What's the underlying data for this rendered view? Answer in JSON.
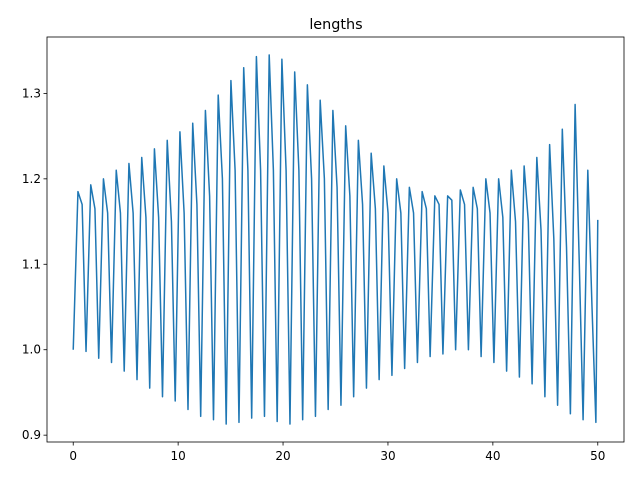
{
  "chart_data": {
    "type": "line",
    "title": "lengths",
    "x": [
      0,
      0.45,
      0.85,
      1.22,
      1.67,
      2.07,
      2.43,
      2.88,
      3.28,
      3.65,
      4.1,
      4.5,
      4.86,
      5.31,
      5.71,
      6.08,
      6.53,
      6.93,
      7.29,
      7.74,
      8.14,
      8.51,
      8.96,
      9.36,
      9.72,
      10.17,
      10.57,
      10.94,
      11.39,
      11.79,
      12.15,
      12.6,
      13.0,
      13.37,
      13.82,
      14.22,
      14.58,
      15.03,
      15.43,
      15.8,
      16.25,
      16.65,
      17.01,
      17.46,
      17.86,
      18.23,
      18.68,
      19.08,
      19.44,
      19.89,
      20.29,
      20.66,
      21.11,
      21.51,
      21.87,
      22.32,
      22.72,
      23.09,
      23.54,
      23.94,
      24.3,
      24.75,
      25.15,
      25.52,
      25.97,
      26.37,
      26.73,
      27.18,
      27.58,
      27.95,
      28.4,
      28.8,
      29.16,
      29.61,
      30.01,
      30.38,
      30.83,
      31.23,
      31.59,
      32.04,
      32.44,
      32.81,
      33.26,
      33.66,
      34.02,
      34.47,
      34.87,
      35.24,
      35.69,
      36.09,
      36.45,
      36.9,
      37.3,
      37.67,
      38.12,
      38.52,
      38.88,
      39.33,
      39.73,
      40.1,
      40.55,
      40.95,
      41.31,
      41.76,
      42.16,
      42.53,
      42.98,
      43.38,
      43.74,
      44.19,
      44.59,
      44.96,
      45.41,
      45.81,
      46.17,
      46.62,
      47.02,
      47.39,
      47.84,
      48.24,
      48.6,
      49.05,
      49.45,
      49.82,
      50.0
    ],
    "series": [
      {
        "name": "lengths",
        "color": "#1f77b4",
        "values": [
          1.0,
          1.185,
          1.17,
          0.998,
          1.193,
          1.165,
          0.99,
          1.2,
          1.16,
          0.985,
          1.21,
          1.16,
          0.975,
          1.218,
          1.16,
          0.965,
          1.225,
          1.155,
          0.955,
          1.235,
          1.155,
          0.945,
          1.245,
          1.15,
          0.94,
          1.255,
          1.16,
          0.93,
          1.265,
          1.17,
          0.922,
          1.28,
          1.18,
          0.918,
          1.298,
          1.2,
          0.913,
          1.315,
          1.21,
          0.915,
          1.33,
          1.21,
          0.92,
          1.343,
          1.21,
          0.922,
          1.345,
          1.21,
          0.916,
          1.34,
          1.21,
          0.913,
          1.325,
          1.21,
          0.918,
          1.31,
          1.2,
          0.922,
          1.292,
          1.2,
          0.93,
          1.28,
          1.19,
          0.935,
          1.262,
          1.18,
          0.945,
          1.245,
          1.17,
          0.955,
          1.23,
          1.165,
          0.965,
          1.215,
          1.16,
          0.97,
          1.2,
          1.16,
          0.978,
          1.19,
          1.16,
          0.985,
          1.185,
          1.165,
          0.992,
          1.18,
          1.17,
          0.995,
          1.18,
          1.175,
          1.0,
          1.187,
          1.17,
          1.0,
          1.19,
          1.165,
          0.992,
          1.2,
          1.16,
          0.985,
          1.2,
          1.155,
          0.975,
          1.21,
          1.15,
          0.968,
          1.215,
          1.15,
          0.96,
          1.225,
          1.14,
          0.945,
          1.24,
          1.13,
          0.935,
          1.258,
          1.12,
          0.925,
          1.287,
          1.1,
          0.918,
          1.21,
          1.05,
          0.915,
          1.152
        ]
      }
    ],
    "xlim": [
      -2.5,
      52.5
    ],
    "xticks": [
      0,
      10,
      20,
      30,
      40,
      50
    ],
    "ylim": [
      0.892,
      1.366
    ],
    "yticks": [
      0.9,
      {
        "value": 1,
        "label": "1.0"
      },
      1.1,
      1.2,
      1.3
    ],
    "grid": false
  }
}
